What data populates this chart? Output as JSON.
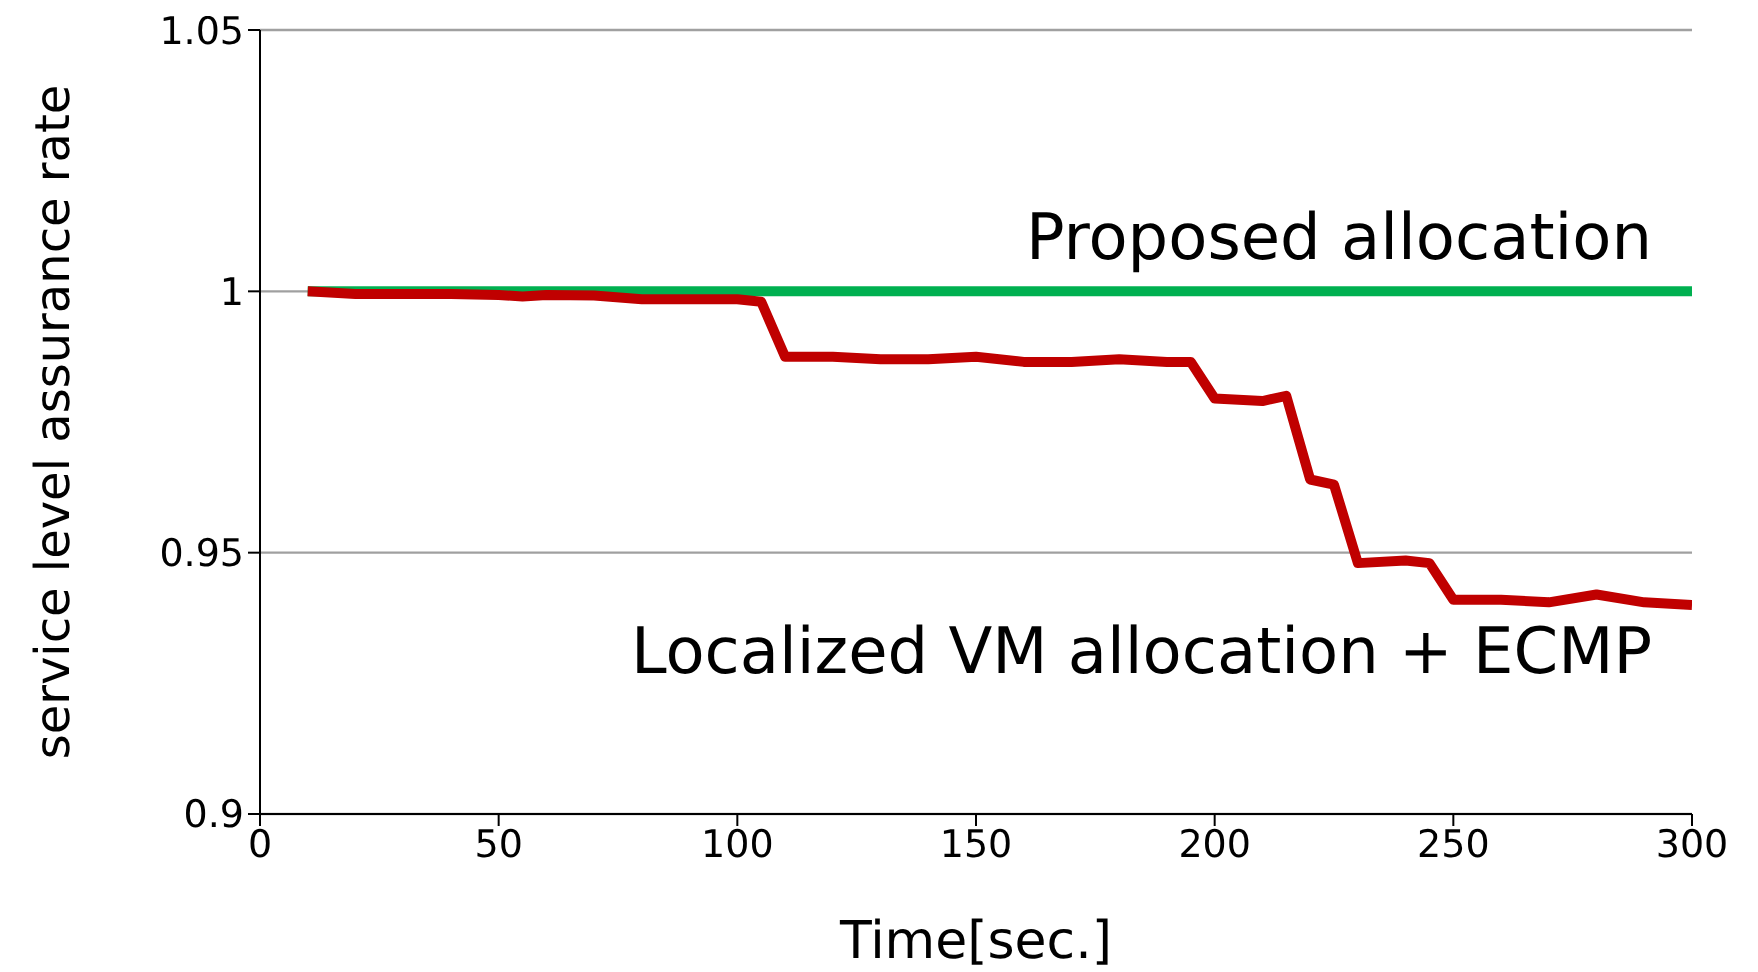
{
  "chart_data": {
    "type": "line",
    "xlabel": "Time[sec.]",
    "ylabel": "service level assurance rate",
    "x": [
      10,
      20,
      30,
      40,
      50,
      55,
      60,
      70,
      80,
      90,
      100,
      105,
      110,
      120,
      130,
      140,
      150,
      160,
      170,
      180,
      190,
      195,
      200,
      210,
      215,
      220,
      225,
      230,
      240,
      245,
      250,
      260,
      270,
      280,
      290,
      300
    ],
    "series": [
      {
        "name": "Proposed allocation",
        "color": "#00b050",
        "values": [
          1,
          1,
          1,
          1,
          1,
          1,
          1,
          1,
          1,
          1,
          1,
          1,
          1,
          1,
          1,
          1,
          1,
          1,
          1,
          1,
          1,
          1,
          1,
          1,
          1,
          1,
          1,
          1,
          1,
          1,
          1,
          1,
          1,
          1,
          1,
          1
        ]
      },
      {
        "name": "Localized VM allocation + ECMP",
        "color": "#c00000",
        "values": [
          1,
          0.9995,
          0.9995,
          0.9995,
          0.9993,
          0.999,
          0.9993,
          0.9992,
          0.9985,
          0.9985,
          0.9985,
          0.998,
          0.9875,
          0.9875,
          0.987,
          0.987,
          0.9875,
          0.9865,
          0.9865,
          0.987,
          0.9865,
          0.9865,
          0.9795,
          0.979,
          0.98,
          0.964,
          0.963,
          0.948,
          0.9485,
          0.948,
          0.941,
          0.941,
          0.9405,
          0.942,
          0.9405,
          0.94
        ]
      }
    ],
    "xlim": [
      0,
      300
    ],
    "xticks": [
      0,
      50,
      100,
      150,
      200,
      250,
      300
    ],
    "ylim": [
      0.9,
      1.05
    ],
    "yticks": [
      0.9,
      0.95,
      1,
      1.05
    ],
    "grid": "y",
    "marker": "none",
    "line_style": "solid"
  }
}
